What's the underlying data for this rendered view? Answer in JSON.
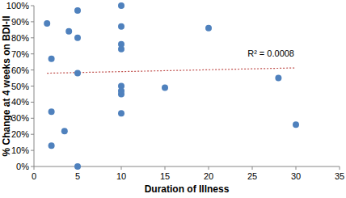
{
  "chart_data": {
    "type": "scatter",
    "xlabel": "Duration of Illness",
    "ylabel": "% Change at 4 weeks on BDI-II",
    "annotation": "R² = 0.0008",
    "x": [
      1.5,
      2,
      2,
      2,
      3.5,
      4,
      5,
      5,
      5,
      5,
      10,
      10,
      10,
      10,
      10,
      10,
      10,
      10,
      15,
      20,
      28,
      30
    ],
    "values": [
      89,
      67,
      34,
      13,
      22,
      84,
      97,
      80,
      58,
      0,
      100,
      87,
      76,
      73,
      50,
      47,
      45,
      33,
      49,
      86,
      55,
      26
    ],
    "color": "#4f81bd",
    "marker": "circle",
    "trendline": {
      "x": [
        1.5,
        30
      ],
      "values": [
        58,
        61.3
      ],
      "color": "#c0504d",
      "line_style": "dotted"
    },
    "xlim": [
      0,
      35
    ],
    "xticks": [
      0,
      5,
      10,
      15,
      20,
      25,
      30,
      35
    ],
    "ylim": [
      0,
      100
    ],
    "yticks": [
      {
        "value": 0,
        "label": "0%"
      },
      {
        "value": 10,
        "label": "10%"
      },
      {
        "value": 20,
        "label": "20%"
      },
      {
        "value": 30,
        "label": "30%"
      },
      {
        "value": 40,
        "label": "40%"
      },
      {
        "value": 50,
        "label": "50%"
      },
      {
        "value": 60,
        "label": "60%"
      },
      {
        "value": 70,
        "label": "70%"
      },
      {
        "value": 80,
        "label": "80%"
      },
      {
        "value": 90,
        "label": "90%"
      },
      {
        "value": 100,
        "label": "100%"
      }
    ],
    "grid": false
  }
}
